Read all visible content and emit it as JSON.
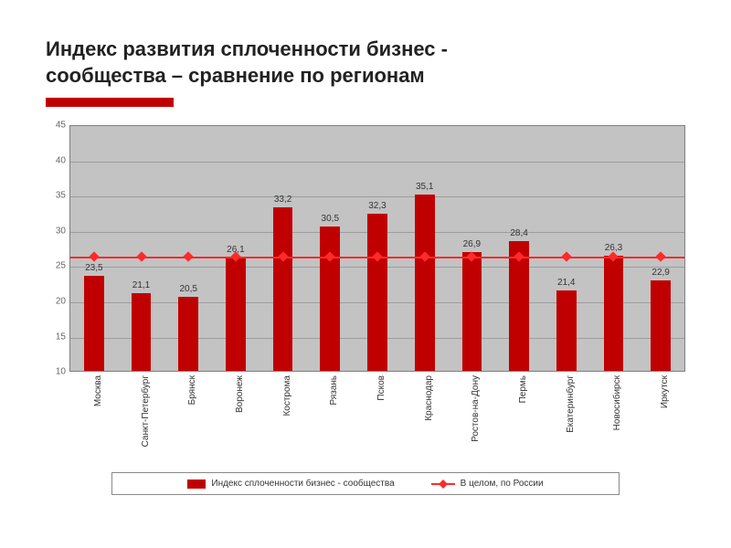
{
  "title_line1": "Индекс развития сплоченности бизнес -",
  "title_line2": "сообщества – сравнение по регионам",
  "chart": {
    "type": "bar+reference-line",
    "background_color": "#c3c3c3",
    "grid_color": "#9d9d9d",
    "bar_color": "#c00000",
    "reference_line_color": "#ff2a2a",
    "reference_marker": "diamond",
    "ylim_min": 10,
    "ylim_max": 45,
    "ytick_step": 5,
    "yticks": [
      10,
      15,
      20,
      25,
      30,
      35,
      40,
      45
    ],
    "bar_width_ratio": 0.42,
    "categories": [
      "Москва",
      "Санкт-Петербург",
      "Брянск",
      "Воронеж",
      "Кострома",
      "Рязань",
      "Псков",
      "Краснодар",
      "Ростов-на-Дону",
      "Пермь",
      "Екатеринбург",
      "Новосибирск",
      "Иркутск"
    ],
    "values": [
      23.5,
      21.1,
      20.5,
      26.1,
      33.2,
      30.5,
      32.3,
      35.1,
      26.9,
      28.4,
      21.4,
      26.3,
      22.9
    ],
    "value_labels": [
      "23,5",
      "21,1",
      "20,5",
      "26,1",
      "33,2",
      "30,5",
      "32,3",
      "35,1",
      "26,9",
      "28,4",
      "21,4",
      "26,3",
      "22,9"
    ],
    "reference_value": 26.5,
    "label_fontsize": 10,
    "axis_fontsize": 10,
    "title_fontsize": 22,
    "title_color": "#222222",
    "accent_bar_color": "#c00000",
    "plot_border_color": "#7f7f7f"
  },
  "legend": {
    "bar_label": "Индекс сплоченности бизнес - сообщества",
    "line_label": "В целом, по России"
  }
}
